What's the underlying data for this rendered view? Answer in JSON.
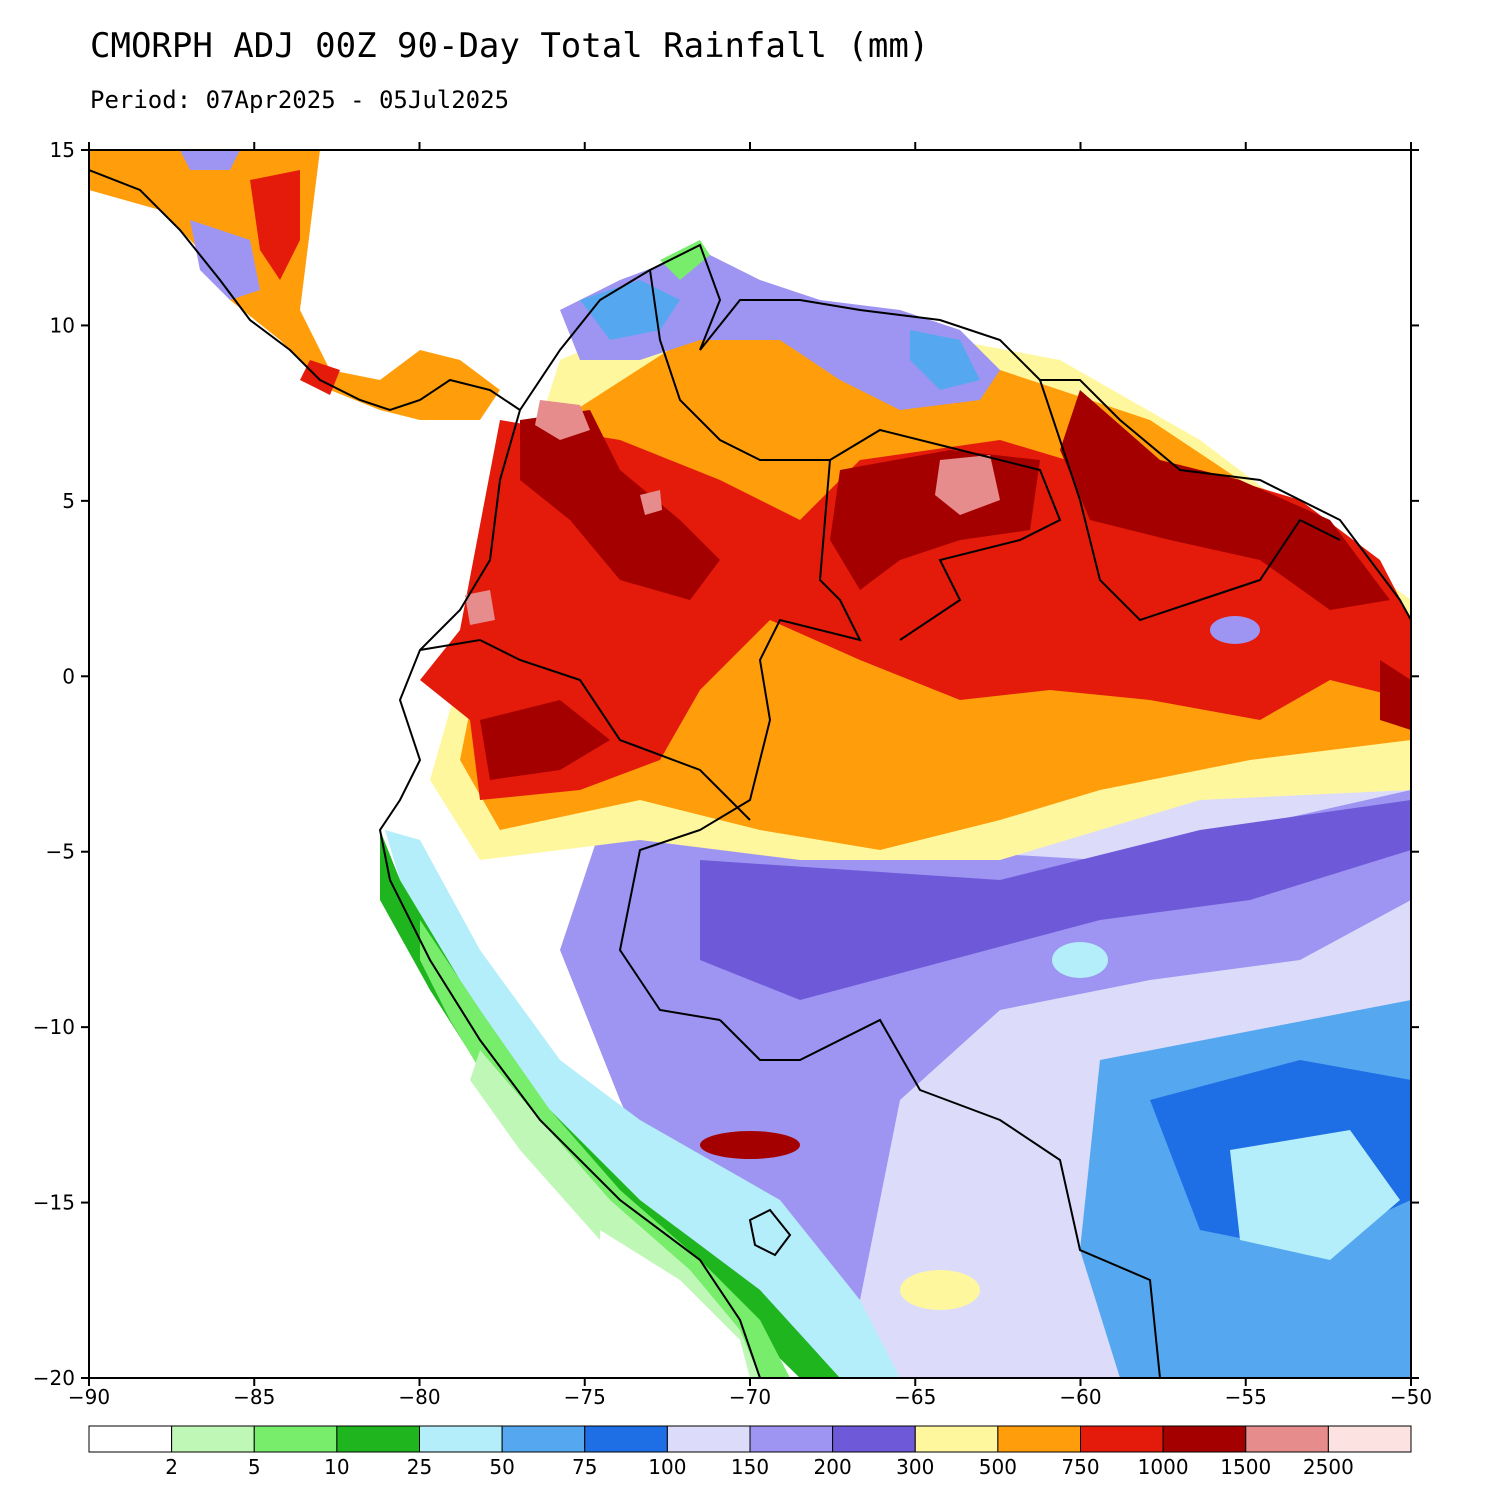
{
  "header": {
    "title": "CMORPH ADJ 00Z 90-Day Total Rainfall (mm)",
    "period": "Period: 07Apr2025 - 05Jul2025"
  },
  "map": {
    "lon_range": [
      -90,
      -50
    ],
    "lat_range": [
      -20,
      15
    ],
    "lon_ticks": [
      -90,
      -85,
      -80,
      -75,
      -70,
      -65,
      -60,
      -55,
      -50
    ],
    "lat_ticks": [
      -20,
      -15,
      -10,
      -5,
      0,
      5,
      10,
      15
    ],
    "lon_tick_labels": [
      "−90",
      "−85",
      "−80",
      "−75",
      "−70",
      "−65",
      "−60",
      "−55",
      "−50"
    ],
    "lat_tick_labels": [
      "−20",
      "−15",
      "−10",
      "−5",
      "0",
      "5",
      "10",
      "15"
    ]
  },
  "colorbar": {
    "colors": [
      "#ffffff",
      "#bff7b6",
      "#78ed6b",
      "#1fb51f",
      "#b4eefa",
      "#55a8f0",
      "#1e6ee6",
      "#dcdcfa",
      "#9e94f2",
      "#6e5ad8",
      "#fff79e",
      "#ff9e0a",
      "#e41a0a",
      "#a50000",
      "#e68c8c",
      "#fde2e2"
    ],
    "labels": [
      "2",
      "5",
      "10",
      "25",
      "50",
      "75",
      "100",
      "150",
      "200",
      "300",
      "500",
      "750",
      "1000",
      "1500",
      "2500"
    ]
  },
  "chart_data": {
    "type": "heatmap",
    "title": "CMORPH ADJ 00Z 90-Day Total Rainfall (mm)",
    "subtitle": "Period: 07Apr2025 - 05Jul2025",
    "x_range": [
      -90,
      -50
    ],
    "y_range": [
      -20,
      15
    ],
    "levels": [
      2,
      5,
      10,
      25,
      50,
      75,
      100,
      150,
      200,
      300,
      500,
      750,
      1000,
      1500,
      2500
    ],
    "regions": [
      {
        "level_bin": "1500-2500",
        "lon": -63.5,
        "lat": 5.5
      },
      {
        "level_bin": "1500-2500",
        "lon": -76.5,
        "lat": 7.2
      },
      {
        "level_bin": "1000-1500",
        "lon": -73,
        "lat": 4
      },
      {
        "level_bin": "1000-1500",
        "lon": -66,
        "lat": 3.5
      },
      {
        "level_bin": "1000-1500",
        "lon": -52,
        "lat": 3
      },
      {
        "level_bin": "750-1000",
        "lon": -76,
        "lat": -2
      },
      {
        "level_bin": "500-750",
        "lon": -66,
        "lat": -1
      },
      {
        "level_bin": "300-500",
        "lon": -62,
        "lat": -4
      },
      {
        "level_bin": "200-300",
        "lon": -68,
        "lat": -7
      },
      {
        "level_bin": "75-100",
        "lon": -55,
        "lat": -12
      },
      {
        "level_bin": "10-25",
        "lon": -78.5,
        "lat": -10
      },
      {
        "level_bin": "0-2",
        "lon": -71,
        "lat": -18
      }
    ]
  }
}
